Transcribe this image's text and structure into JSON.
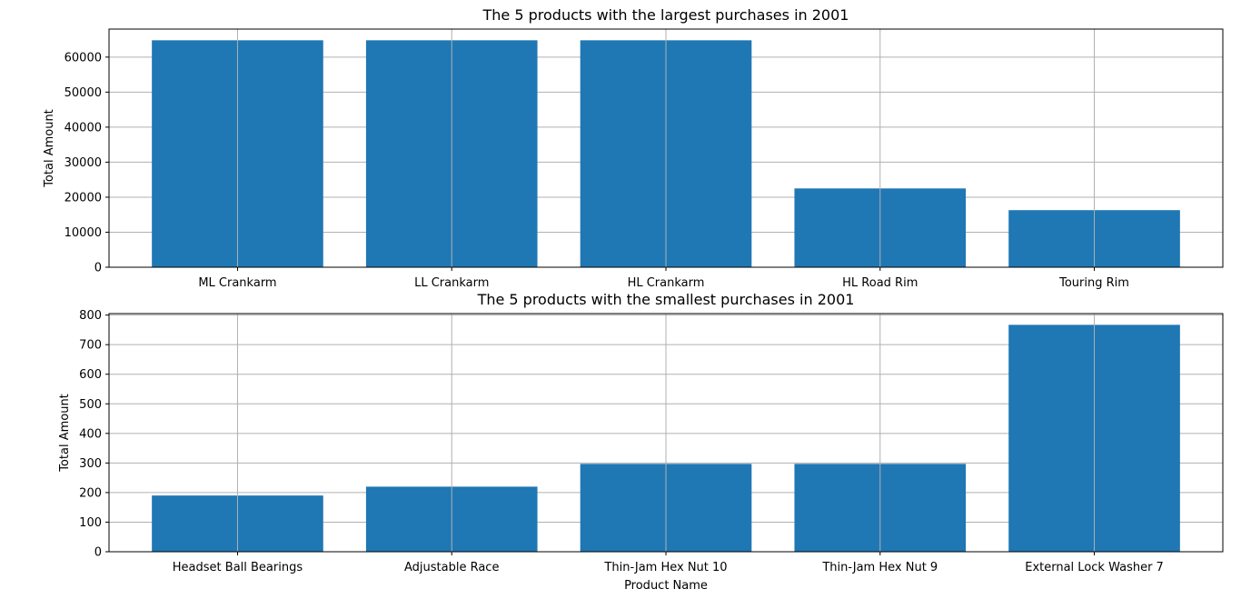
{
  "chart_data": [
    {
      "type": "bar",
      "title": "The 5 products with the largest purchases in 2001",
      "xlabel": "",
      "ylabel": "Total Amount",
      "categories": [
        "ML Crankarm",
        "LL Crankarm",
        "HL Crankarm",
        "HL Road Rim",
        "Touring Rim"
      ],
      "values": [
        64800,
        64800,
        64800,
        22500,
        16300
      ],
      "ylim": [
        0,
        68000
      ],
      "yticks": [
        0,
        10000,
        20000,
        30000,
        40000,
        50000,
        60000
      ],
      "ytick_labels": [
        "0",
        "10000",
        "20000",
        "30000",
        "40000",
        "50000",
        "60000"
      ],
      "grid": true,
      "color": "#1f77b4"
    },
    {
      "type": "bar",
      "title": "The 5 products with the smallest purchases in 2001",
      "xlabel": "Product Name",
      "ylabel": "Total Amount",
      "categories": [
        "Headset Ball Bearings",
        "Adjustable Race",
        "Thin-Jam Hex Nut 10",
        "Thin-Jam Hex Nut 9",
        "External Lock Washer 7"
      ],
      "values": [
        190,
        220,
        297,
        297,
        767
      ],
      "ylim": [
        0,
        805
      ],
      "yticks": [
        0,
        100,
        200,
        300,
        400,
        500,
        600,
        700,
        800
      ],
      "ytick_labels": [
        "0",
        "100",
        "200",
        "300",
        "400",
        "500",
        "600",
        "700",
        "800"
      ],
      "grid": true,
      "color": "#1f77b4"
    }
  ]
}
